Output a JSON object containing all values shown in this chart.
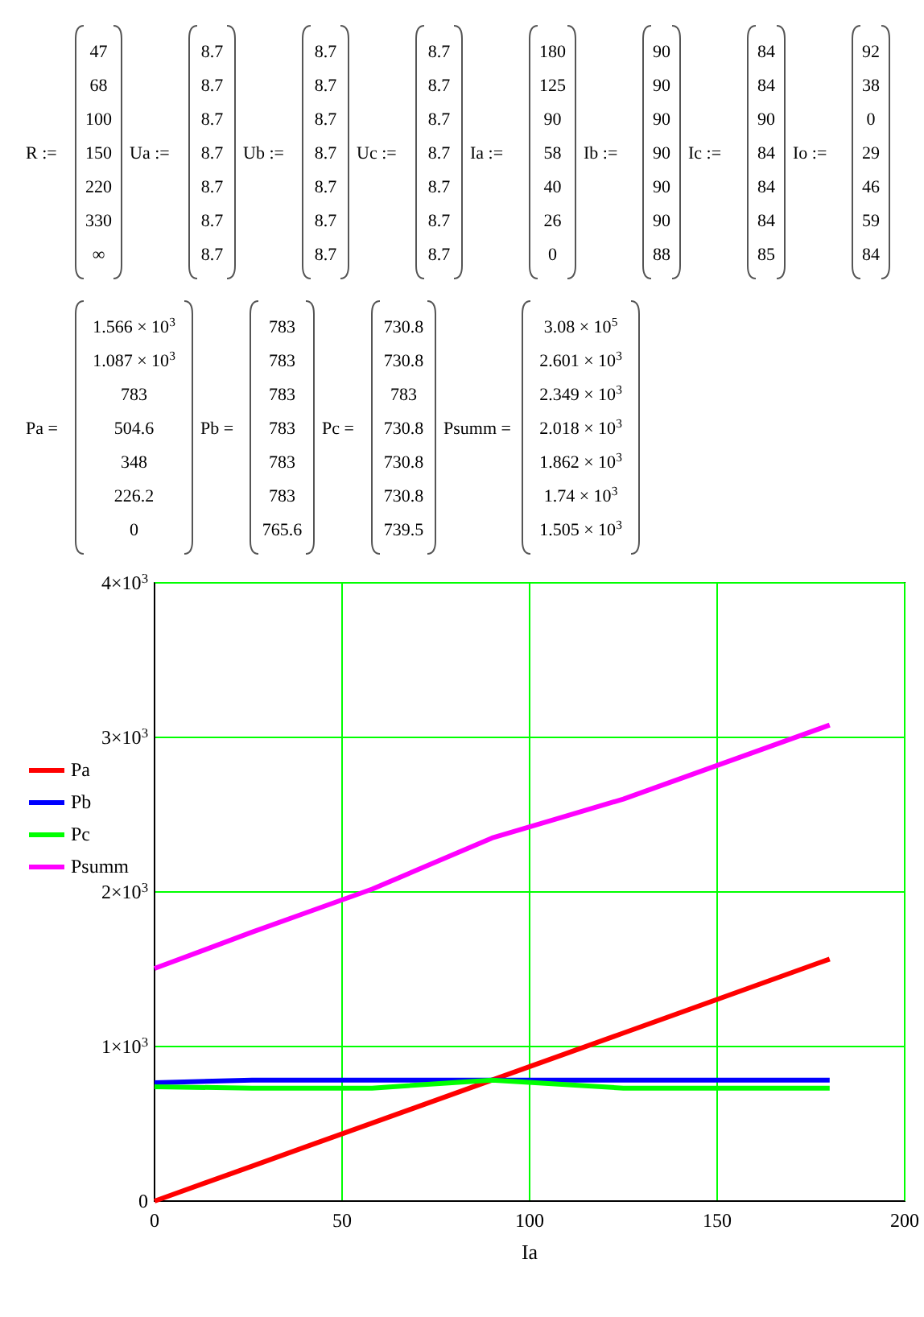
{
  "chart_data": [
    {
      "type": "other",
      "annotations": [
        "R :=\n47\n68\n100\n150\n220\n330\n∞",
        "Ua :=\n8.7\n8.7\n8.7\n8.7\n8.7\n8.7\n8.7",
        "Ub :=\n8.7\n8.7\n8.7\n8.7\n8.7\n8.7\n8.7",
        "Uc :=\n8.7\n8.7\n8.7\n8.7\n8.7\n8.7\n8.7",
        "Ia :=\n180\n125\n90\n58\n40\n26\n0",
        "Ib :=\n90\n90\n90\n90\n90\n90\n88",
        "Ic :=\n84\n84\n90\n84\n84\n84\n85",
        "Io :=\n92\n38\n0\n29\n46\n59\n84",
        "Pa =\n1.566 × 10$^{3}$\n1.087 × 10$^{3}$\n783\n504.6\n348\n226.2\n0",
        "Pb =\n783\n783\n783\n783\n783\n783\n765.6",
        "Pc =\n730.8\n730.8\n783\n730.8\n730.8\n730.8\n739.5",
        "Psumm =\n3.08 × 10$^{5}$\n2.601 × 10$^{3}$\n2.349 × 10$^{3}$\n2.018 × 10$^{3}$\n1.862 × 10$^{3}$\n1.74 × 10$^{3}$\n1.505 × 10$^{3}$"
      ]
    },
    {
      "type": "line",
      "xlabel": "Ia",
      "xlim": [
        0,
        200
      ],
      "xticks": [
        0,
        50,
        100,
        150,
        200
      ],
      "ylim": [
        0,
        4000
      ],
      "yticks": [
        {
          "value": 0,
          "label": "0"
        },
        {
          "value": 1000,
          "label": "1×10$^{3}$"
        },
        {
          "value": 2000,
          "label": "2×10$^{3}$"
        },
        {
          "value": 3000,
          "label": "3×10$^{3}$"
        },
        {
          "value": 4000,
          "label": "4×10$^{3}$"
        }
      ],
      "grid": true,
      "legend": "left",
      "line_style": "solid",
      "series": [
        {
          "name": "Pa",
          "color": "#ff0000",
          "x": [
            180,
            125,
            90,
            58,
            40,
            26,
            0
          ],
          "values": [
            1566,
            1087,
            783,
            504.6,
            348,
            226.2,
            0
          ]
        },
        {
          "name": "Pb",
          "color": "#0000ff",
          "x": [
            180,
            125,
            90,
            58,
            40,
            26,
            0
          ],
          "values": [
            783,
            783,
            783,
            783,
            783,
            783,
            765.6
          ]
        },
        {
          "name": "Pc",
          "color": "#00ff00",
          "x": [
            180,
            125,
            90,
            58,
            40,
            26,
            0
          ],
          "values": [
            730.8,
            730.8,
            783,
            730.8,
            730.8,
            730.8,
            739.5
          ]
        },
        {
          "name": "Psumm",
          "color": "#ff00ff",
          "x": [
            180,
            125,
            90,
            58,
            40,
            26,
            0
          ],
          "values": [
            3080,
            2601,
            2349,
            2018,
            1862,
            1740,
            1505
          ]
        }
      ]
    }
  ]
}
